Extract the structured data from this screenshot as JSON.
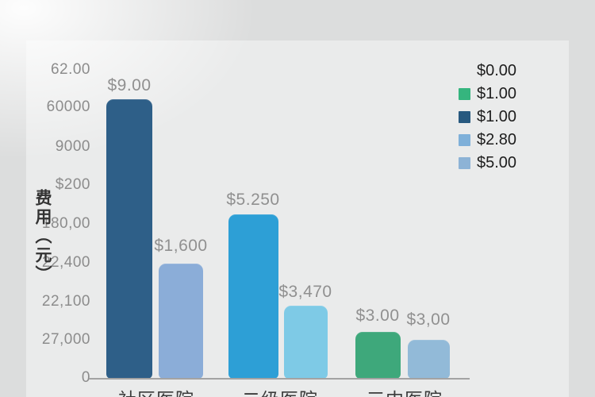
{
  "chart_data": {
    "type": "bar",
    "title": "",
    "ylabel": "费用（元）",
    "xlabel": "",
    "grid": false,
    "y_ticks": [
      "62.00",
      "60000",
      "9000",
      "$200",
      "180,00",
      "22,400",
      "22,100",
      "27,000",
      "0"
    ],
    "categories": [
      "社区医院",
      "二级医院",
      "三中医院"
    ],
    "bars": [
      {
        "category": "社区医院",
        "value_label": "$9.00",
        "color": "#2e5f88",
        "height_frac": 0.907
      },
      {
        "category": "社区医院",
        "value_label": "$1,600",
        "color": "#8badd8",
        "height_frac": 0.374
      },
      {
        "category": "二级医院",
        "value_label": "$5.250",
        "color": "#2d9fd6",
        "height_frac": 0.533
      },
      {
        "category": "二级医院",
        "value_label": "$3,470",
        "color": "#7ecae6",
        "height_frac": 0.237
      },
      {
        "category": "三中医院",
        "value_label": "$3.00",
        "color": "#3ea87b",
        "height_frac": 0.152
      },
      {
        "category": "三中医院",
        "value_label": "$3,00",
        "color": "#92bad8",
        "height_frac": 0.126
      }
    ],
    "legend": {
      "position": "top-right",
      "entries": [
        {
          "label": "$0.00",
          "color": ""
        },
        {
          "label": "$1.00",
          "color": "#35b57e"
        },
        {
          "label": "$1.00",
          "color": "#27597f"
        },
        {
          "label": "$2.80",
          "color": "#7fb0d9"
        },
        {
          "label": "$5.00",
          "color": "#8db3d6"
        }
      ]
    },
    "colors": {
      "background": "#dcdddd",
      "panel": "#eaebeb",
      "axis_line": "#a3a3a3",
      "tick_text": "#8c8c8c",
      "bar_label_text": "#909090",
      "category_text": "#3b3b3b",
      "legend_text": "#1d1d1d"
    }
  }
}
